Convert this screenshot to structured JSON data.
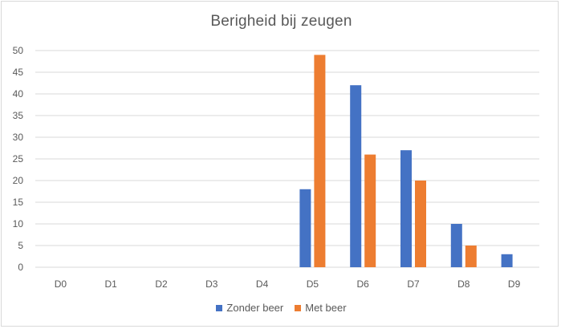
{
  "chart_data": {
    "type": "bar",
    "title": "Berigheid bij zeugen",
    "xlabel": "",
    "ylabel": "",
    "categories": [
      "D0",
      "D1",
      "D2",
      "D3",
      "D4",
      "D5",
      "D6",
      "D7",
      "D8",
      "D9"
    ],
    "ylim": [
      0,
      50
    ],
    "yticks": [
      0,
      5,
      10,
      15,
      20,
      25,
      30,
      35,
      40,
      45,
      50
    ],
    "grid": true,
    "legend_position": "bottom",
    "series": [
      {
        "name": "Zonder beer",
        "color": "#4472c4",
        "values": [
          0,
          0,
          0,
          0,
          0,
          18,
          42,
          27,
          10,
          3
        ]
      },
      {
        "name": "Met beer",
        "color": "#ed7d31",
        "values": [
          0,
          0,
          0,
          0,
          0,
          49,
          26,
          20,
          5,
          0
        ]
      }
    ]
  }
}
